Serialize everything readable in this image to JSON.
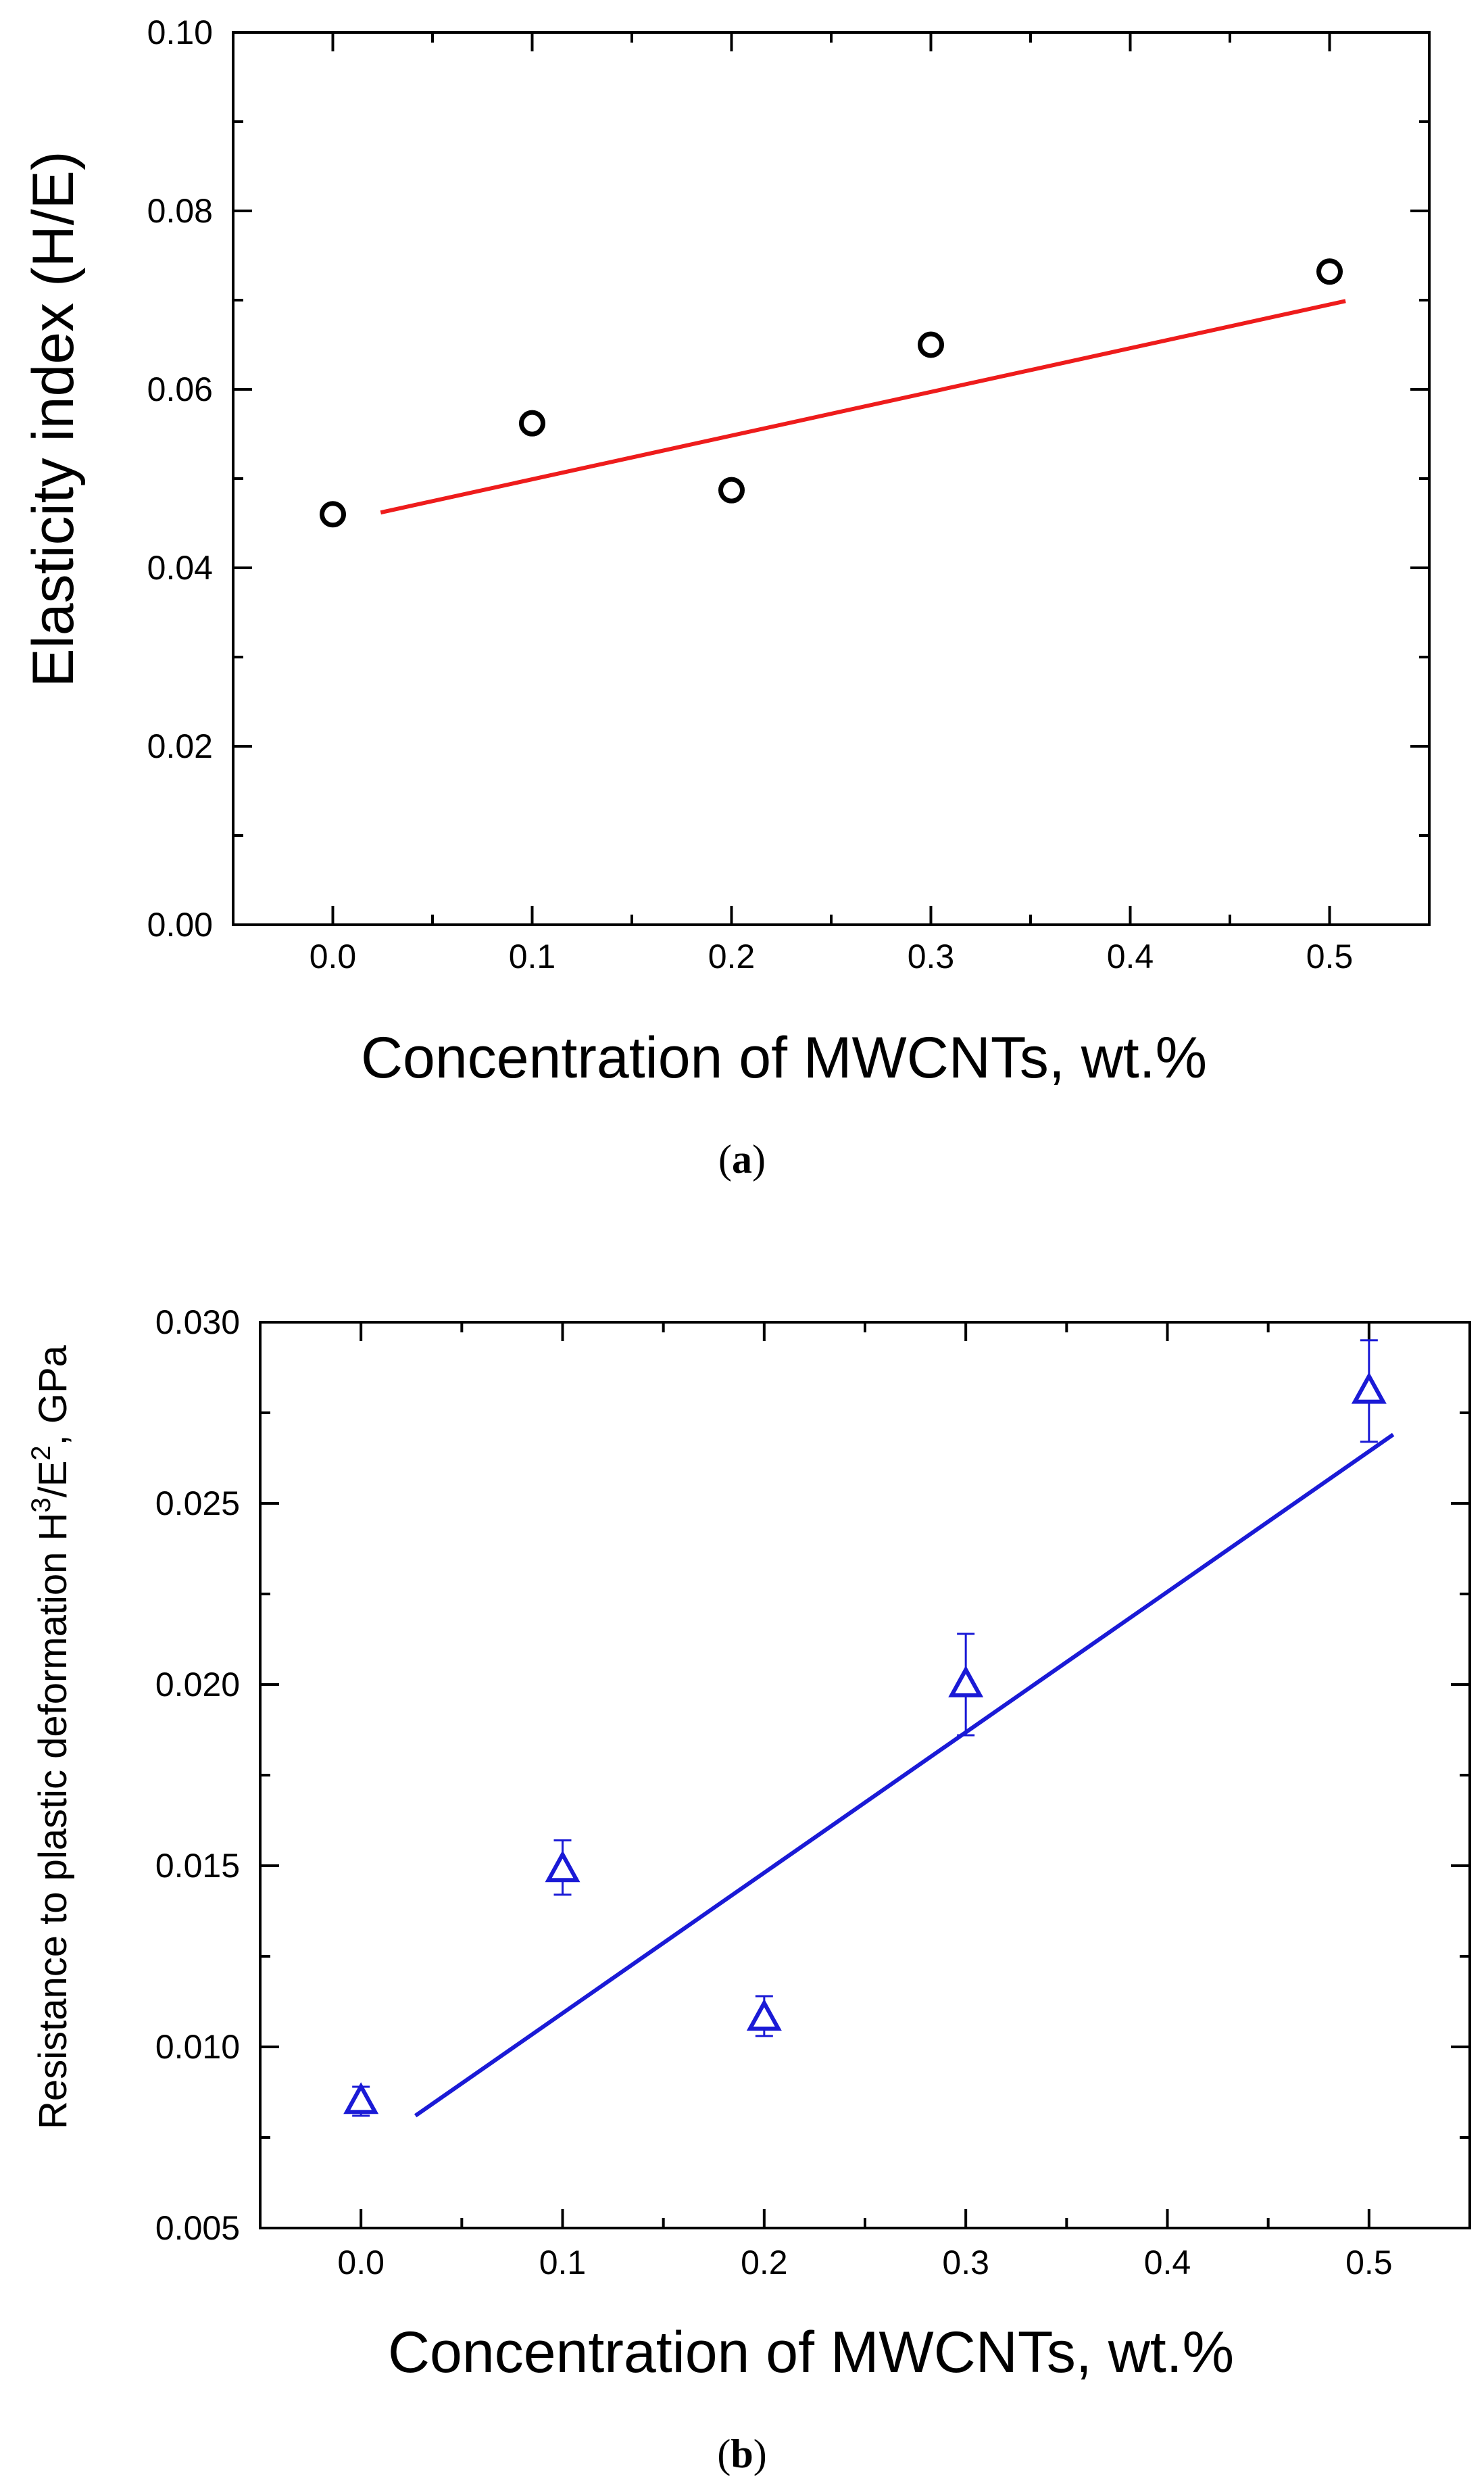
{
  "chart_data": [
    {
      "type": "scatter",
      "panel_label": "a",
      "title": "",
      "xlabel": "Concentration of MWCNTs, wt.%",
      "ylabel": "Elasticity index (H/E)",
      "xlim": [
        -0.05,
        0.55
      ],
      "ylim": [
        0.0,
        0.1
      ],
      "x_ticks": [
        "0.0",
        "0.1",
        "0.2",
        "0.3",
        "0.4",
        "0.5"
      ],
      "y_ticks": [
        "0.00",
        "0.02",
        "0.04",
        "0.06",
        "0.08",
        "0.10"
      ],
      "x_tick_values": [
        0.0,
        0.1,
        0.2,
        0.3,
        0.4,
        0.5
      ],
      "y_tick_values": [
        0.0,
        0.02,
        0.04,
        0.06,
        0.08,
        0.1
      ],
      "series": [
        {
          "name": "Elasticity index",
          "marker": "circle",
          "color": "#000000",
          "x": [
            0.0,
            0.1,
            0.2,
            0.3,
            0.5
          ],
          "y": [
            0.046,
            0.0562,
            0.0487,
            0.065,
            0.0732
          ]
        }
      ],
      "fit_line": {
        "color": "#ee1c1c",
        "x": [
          0.024,
          0.508
        ],
        "y": [
          0.0462,
          0.0699
        ]
      },
      "grid": false
    },
    {
      "type": "scatter",
      "panel_label": "b",
      "title": "",
      "xlabel": "Concentration of MWCNTs, wt.%",
      "ylabel_parts": [
        "Resistance to plastic deformation H",
        "3",
        "/E",
        "2",
        ", GPa"
      ],
      "xlim": [
        -0.05,
        0.55
      ],
      "ylim": [
        0.005,
        0.03
      ],
      "x_ticks": [
        "0.0",
        "0.1",
        "0.2",
        "0.3",
        "0.4",
        "0.5"
      ],
      "y_ticks": [
        "0.005",
        "0.010",
        "0.015",
        "0.020",
        "0.025",
        "0.030"
      ],
      "x_tick_values": [
        0.0,
        0.1,
        0.2,
        0.3,
        0.4,
        0.5
      ],
      "y_tick_values": [
        0.005,
        0.01,
        0.015,
        0.02,
        0.025,
        0.03
      ],
      "series": [
        {
          "name": "Resistance to plastic deformation",
          "marker": "triangle",
          "color": "#1a1ad6",
          "x": [
            0.0,
            0.1,
            0.2,
            0.3,
            0.5
          ],
          "y": [
            0.0085,
            0.0149,
            0.0108,
            0.02,
            0.0281
          ],
          "err_low": [
            0.0004,
            0.0007,
            0.0005,
            0.0014,
            0.0014
          ],
          "err_high": [
            0.0004,
            0.0008,
            0.0006,
            0.0014,
            0.0014
          ]
        }
      ],
      "fit_line": {
        "color": "#1a1ad6",
        "x": [
          0.027,
          0.512
        ],
        "y": [
          0.0081,
          0.0269
        ]
      },
      "grid": false
    }
  ]
}
